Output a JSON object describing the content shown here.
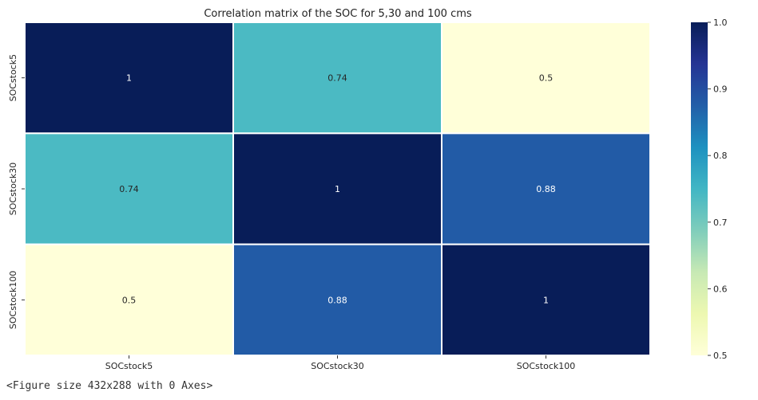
{
  "chart_data": {
    "type": "heatmap",
    "title": "Correlation matrix of the SOC for 5,30 and 100 cms",
    "xlabel": "",
    "ylabel": "",
    "x_categories": [
      "SOCstock5",
      "SOCstock30",
      "SOCstock100"
    ],
    "y_categories": [
      "SOCstock5",
      "SOCstock30",
      "SOCstock100"
    ],
    "values": [
      [
        1,
        0.74,
        0.5
      ],
      [
        0.74,
        1,
        0.88
      ],
      [
        0.5,
        0.88,
        1
      ]
    ],
    "annotations": [
      [
        "1",
        "0.74",
        "0.5"
      ],
      [
        "0.74",
        "1",
        "0.88"
      ],
      [
        "0.5",
        "0.88",
        "1"
      ]
    ],
    "colormap": "YlGnBu",
    "colormap_stops": [
      "#ffffd9",
      "#edf8b1",
      "#c7e9b4",
      "#7fcdbb",
      "#41b6c4",
      "#1d91c0",
      "#225ea8",
      "#253494",
      "#081d58"
    ],
    "colorbar": {
      "range": [
        0.5,
        1.0
      ],
      "ticks": [
        0.5,
        0.6,
        0.7,
        0.8,
        0.9,
        1.0
      ],
      "tick_labels": [
        "0.5",
        "0.6",
        "0.7",
        "0.8",
        "0.9",
        "1.0"
      ]
    },
    "grid_line_color": "#ffffff"
  },
  "footer": {
    "text": "<Figure size 432x288 with 0 Axes>"
  }
}
